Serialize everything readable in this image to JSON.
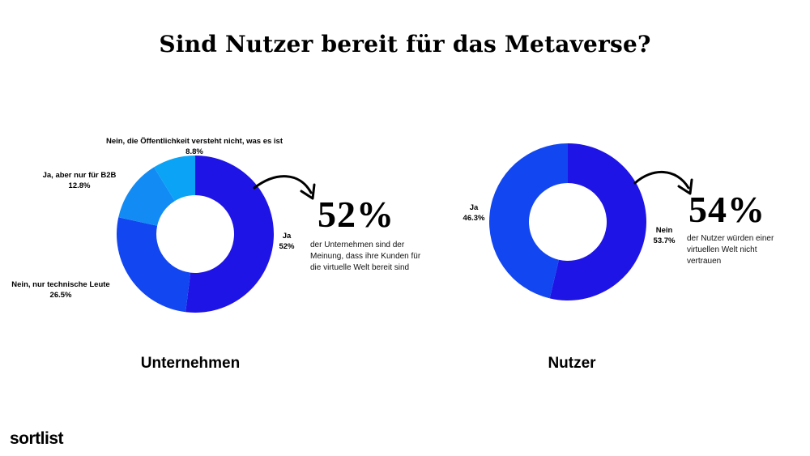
{
  "title": "Sind Nutzer bereit für das Metaverse?",
  "brand": "sortlist",
  "colors": {
    "dark": "#1f14e6",
    "mid": "#1246f0",
    "light": "#128cf4",
    "lighter": "#0aa3f5"
  },
  "chart_data": [
    {
      "type": "pie",
      "donut": true,
      "title": "Unternehmen",
      "slices": [
        {
          "label": "Ja",
          "value": 52,
          "display": "52%",
          "color": "#1f14e6"
        },
        {
          "label": "Nein, nur technische Leute",
          "value": 26.5,
          "display": "26.5%",
          "color": "#1246f0"
        },
        {
          "label": "Ja, aber nur für B2B",
          "value": 12.8,
          "display": "12.8%",
          "color": "#128cf4"
        },
        {
          "label": "Nein, die Öffentlichkeit versteht nicht, was es ist",
          "value": 8.8,
          "display": "8.8%",
          "color": "#0aa3f5"
        }
      ],
      "callout": {
        "value": "52%",
        "text": "der Unternehmen sind der Meinung, dass ihre Kunden für die virtuelle Welt bereit sind"
      }
    },
    {
      "type": "pie",
      "donut": true,
      "title": "Nutzer",
      "slices": [
        {
          "label": "Nein",
          "value": 53.7,
          "display": "53.7%",
          "color": "#1f14e6"
        },
        {
          "label": "Ja",
          "value": 46.3,
          "display": "46.3%",
          "color": "#1246f0"
        }
      ],
      "callout": {
        "value": "54%",
        "text": "der Nutzer würden einer virtuellen Welt nicht vertrauen"
      }
    }
  ]
}
